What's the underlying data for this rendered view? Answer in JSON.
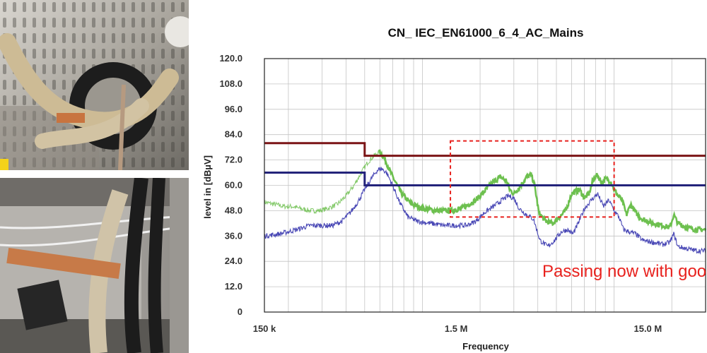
{
  "chart_data": {
    "type": "line",
    "title": "CN_ IEC_EN61000_6_4_AC_Mains",
    "xlabel": "Frequency",
    "ylabel": "level in [dBµV]",
    "xscale": "log",
    "xlim": [
      150000,
      30000000
    ],
    "ylim": [
      0,
      120
    ],
    "yticks": [
      "0",
      "12.0",
      "24.0",
      "36.0",
      "48.0",
      "60.0",
      "72.0",
      "84.0",
      "96.0",
      "108.0",
      "120.0"
    ],
    "xticks": [
      {
        "value": 150000,
        "label": "150 k"
      },
      {
        "value": 1500000,
        "label": "1.5 M"
      },
      {
        "value": 15000000,
        "label": "15.0 M"
      }
    ],
    "grid": true,
    "limits": [
      {
        "color": "#7b1416",
        "points": [
          [
            150000,
            80
          ],
          [
            500000,
            80
          ],
          [
            500000,
            74
          ],
          [
            30000000,
            74
          ]
        ]
      },
      {
        "color": "#23237a",
        "points": [
          [
            150000,
            66
          ],
          [
            500000,
            66
          ],
          [
            500000,
            60
          ],
          [
            30000000,
            60
          ]
        ]
      }
    ],
    "series": [
      {
        "color": "#6dc04f",
        "thin_before": 600000,
        "points": [
          [
            150000,
            52
          ],
          [
            170000,
            51
          ],
          [
            190000,
            50
          ],
          [
            210000,
            50
          ],
          [
            230000,
            49
          ],
          [
            260000,
            48
          ],
          [
            290000,
            48
          ],
          [
            320000,
            49
          ],
          [
            360000,
            51
          ],
          [
            400000,
            55
          ],
          [
            440000,
            60
          ],
          [
            480000,
            66
          ],
          [
            520000,
            71
          ],
          [
            560000,
            74
          ],
          [
            600000,
            76
          ],
          [
            640000,
            72
          ],
          [
            700000,
            64
          ],
          [
            780000,
            56
          ],
          [
            880000,
            51
          ],
          [
            1000000,
            49
          ],
          [
            1200000,
            48
          ],
          [
            1400000,
            48
          ],
          [
            1600000,
            49
          ],
          [
            1750000,
            51
          ],
          [
            1900000,
            53
          ],
          [
            2100000,
            57
          ],
          [
            2300000,
            61
          ],
          [
            2550000,
            64
          ],
          [
            2750000,
            62
          ],
          [
            2850000,
            58
          ],
          [
            3000000,
            56
          ],
          [
            3200000,
            59
          ],
          [
            3500000,
            64
          ],
          [
            3700000,
            65
          ],
          [
            3850000,
            60
          ],
          [
            4050000,
            47
          ],
          [
            4400000,
            43
          ],
          [
            4800000,
            42
          ],
          [
            5200000,
            45
          ],
          [
            5600000,
            48
          ],
          [
            6000000,
            56
          ],
          [
            6600000,
            58
          ],
          [
            7000000,
            54
          ],
          [
            7400000,
            56
          ],
          [
            7800000,
            63
          ],
          [
            8200000,
            65
          ],
          [
            8600000,
            61
          ],
          [
            9000000,
            63
          ],
          [
            9600000,
            62
          ],
          [
            10000000,
            58
          ],
          [
            10500000,
            55
          ],
          [
            11000000,
            53
          ],
          [
            11600000,
            46
          ],
          [
            12200000,
            51
          ],
          [
            13000000,
            47
          ],
          [
            14000000,
            44
          ],
          [
            16000000,
            42
          ],
          [
            18000000,
            41
          ],
          [
            19500000,
            40
          ],
          [
            20500000,
            46
          ],
          [
            21500000,
            42
          ],
          [
            24000000,
            40
          ],
          [
            27000000,
            39
          ],
          [
            30000000,
            39
          ]
        ]
      },
      {
        "color": "#4847b5",
        "points": [
          [
            150000,
            36
          ],
          [
            180000,
            37
          ],
          [
            220000,
            39
          ],
          [
            260000,
            41
          ],
          [
            300000,
            41
          ],
          [
            340000,
            41
          ],
          [
            380000,
            43
          ],
          [
            420000,
            47
          ],
          [
            460000,
            52
          ],
          [
            500000,
            58
          ],
          [
            540000,
            63
          ],
          [
            580000,
            67
          ],
          [
            610000,
            68
          ],
          [
            650000,
            66
          ],
          [
            700000,
            60
          ],
          [
            760000,
            52
          ],
          [
            840000,
            45
          ],
          [
            940000,
            43
          ],
          [
            1100000,
            42
          ],
          [
            1300000,
            41
          ],
          [
            1500000,
            41
          ],
          [
            1700000,
            41
          ],
          [
            1900000,
            43
          ],
          [
            2100000,
            47
          ],
          [
            2350000,
            50
          ],
          [
            2600000,
            53
          ],
          [
            2800000,
            55
          ],
          [
            3000000,
            54
          ],
          [
            3200000,
            49
          ],
          [
            3500000,
            46
          ],
          [
            3800000,
            44
          ],
          [
            4100000,
            34
          ],
          [
            4500000,
            31
          ],
          [
            4900000,
            34
          ],
          [
            5300000,
            38
          ],
          [
            5700000,
            39
          ],
          [
            6100000,
            37
          ],
          [
            6500000,
            42
          ],
          [
            7000000,
            49
          ],
          [
            7600000,
            53
          ],
          [
            8200000,
            56
          ],
          [
            8800000,
            50
          ],
          [
            9400000,
            53
          ],
          [
            10000000,
            48
          ],
          [
            10600000,
            45
          ],
          [
            11200000,
            39
          ],
          [
            12000000,
            38
          ],
          [
            13000000,
            37
          ],
          [
            14000000,
            34
          ],
          [
            16000000,
            33
          ],
          [
            18000000,
            32
          ],
          [
            19500000,
            33
          ],
          [
            20500000,
            37
          ],
          [
            21500000,
            31
          ],
          [
            24000000,
            30
          ],
          [
            27000000,
            29
          ],
          [
            30000000,
            29
          ]
        ]
      }
    ],
    "annotation_box": {
      "x": [
        1400000,
        10000000
      ],
      "y": [
        45,
        81
      ],
      "color": "#e8211d"
    },
    "annotation": {
      "text": "Passing now with good margin",
      "color": "#e8211d"
    }
  }
}
